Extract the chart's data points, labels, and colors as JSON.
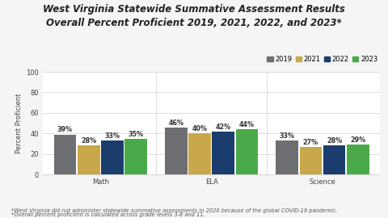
{
  "title_line1": "West Virginia Statewide Summative Assessment Results",
  "title_line2": "Overall Percent Proficient 2019, 2021, 2022, and 2023*",
  "categories": [
    "Math",
    "ELA",
    "Science"
  ],
  "years": [
    "2019",
    "2021",
    "2022",
    "2023"
  ],
  "values": {
    "Math": [
      39,
      28,
      33,
      35
    ],
    "ELA": [
      46,
      40,
      42,
      44
    ],
    "Science": [
      33,
      27,
      28,
      29
    ]
  },
  "bar_colors": [
    "#6d6e71",
    "#c8a84b",
    "#1b3d6e",
    "#4aaa4a"
  ],
  "ylabel": "Percent Proficient",
  "ylim": [
    0,
    100
  ],
  "yticks": [
    0,
    20,
    40,
    60,
    80,
    100
  ],
  "footnote1": "*West Virginia did not administer statewide summative assessments in 2020 because of the global COVID-19 pandemic.",
  "footnote2": "*Overall percent proficient is calculated across grade levels 3-8 and 11.",
  "bg_color": "#f5f5f5",
  "plot_bg_color": "#ffffff",
  "grid_color": "#d8d8d8",
  "title_fontsize": 8.5,
  "label_fontsize": 6.0,
  "legend_fontsize": 6.0,
  "bar_label_fontsize": 5.8,
  "footnote_fontsize": 4.8,
  "axis_label_fontsize": 6.0
}
